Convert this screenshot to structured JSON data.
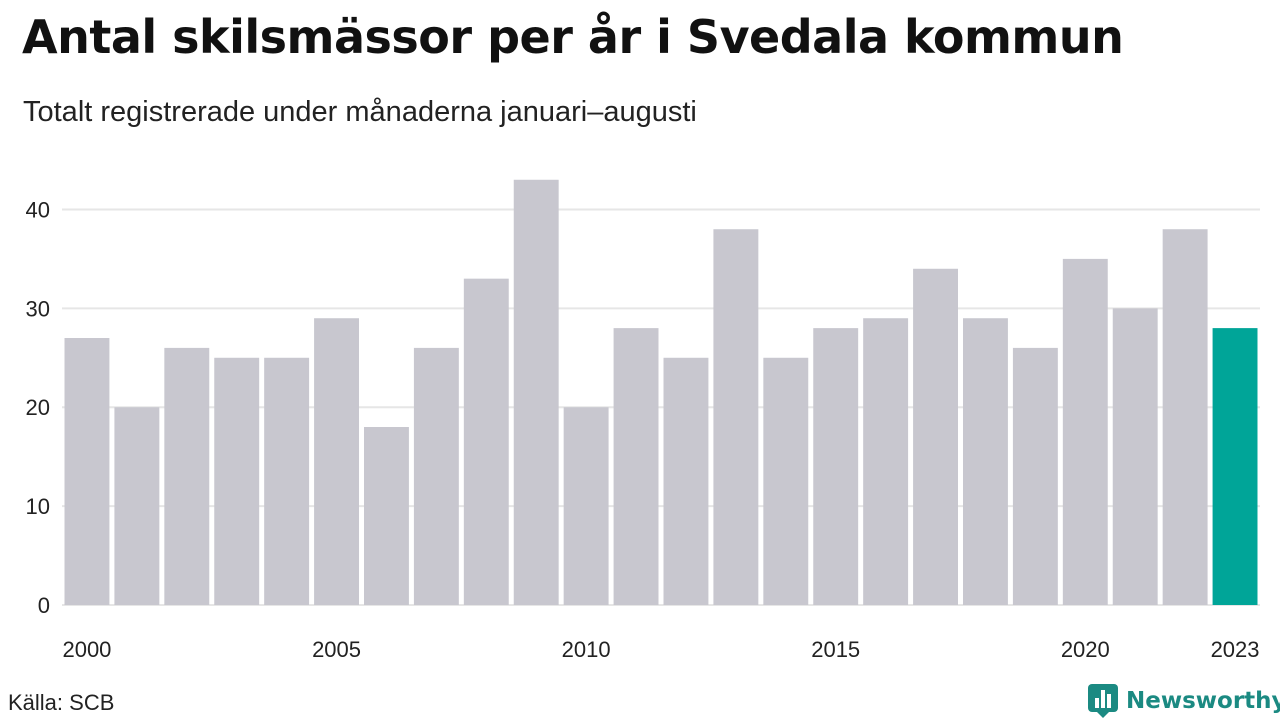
{
  "title": "Antal skilsmässor per år i Svedala kommun",
  "subtitle": "Totalt registrerade under månaderna januari–augusti",
  "source": "Källa: SCB",
  "brand": {
    "name": "Newsworthy",
    "icon": "newsworthy-logo-icon",
    "color": "#1b8a82"
  },
  "colors": {
    "bar": "#c8c7cf",
    "highlight": "#00a598",
    "grid": "#e6e6e6",
    "axis_text": "#222222"
  },
  "chart_data": {
    "type": "bar",
    "title": "Antal skilsmässor per år i Svedala kommun",
    "subtitle": "Totalt registrerade under månaderna januari–augusti",
    "xlabel": "",
    "ylabel": "",
    "categories": [
      "2000",
      "2001",
      "2002",
      "2003",
      "2004",
      "2005",
      "2006",
      "2007",
      "2008",
      "2009",
      "2010",
      "2011",
      "2012",
      "2013",
      "2014",
      "2015",
      "2016",
      "2017",
      "2018",
      "2019",
      "2020",
      "2021",
      "2022",
      "2023"
    ],
    "values": [
      27,
      20,
      26,
      25,
      25,
      29,
      18,
      26,
      33,
      43,
      20,
      28,
      25,
      38,
      25,
      28,
      29,
      34,
      29,
      26,
      35,
      30,
      38,
      28
    ],
    "highlight": "2023",
    "ylim": [
      0,
      45
    ],
    "yticks": [
      0,
      10,
      20,
      30,
      40
    ],
    "xtick_labels": [
      "2000",
      "2005",
      "2010",
      "2015",
      "2020",
      "2023"
    ],
    "grid": true,
    "legend": "none"
  }
}
